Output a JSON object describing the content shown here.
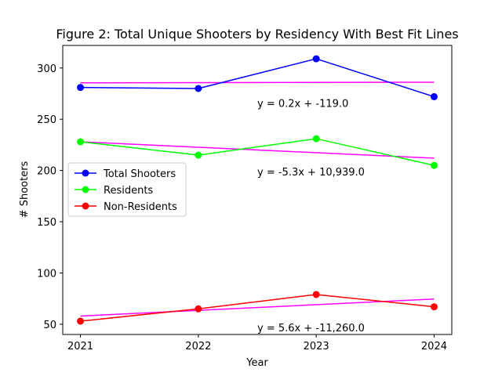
{
  "chart_data": {
    "type": "line",
    "title": "Figure 2: Total Unique Shooters by Residency With Best Fit Lines",
    "xlabel": "Year",
    "ylabel": "# Shooters",
    "x": [
      2021,
      2022,
      2023,
      2024
    ],
    "x_tick_labels": [
      "2021",
      "2022",
      "2023",
      "2024"
    ],
    "xlim": [
      2020.85,
      2024.15
    ],
    "ylim": [
      40,
      322
    ],
    "y_ticks": [
      50,
      100,
      150,
      200,
      250,
      300
    ],
    "grid": false,
    "legend_placement": "center-left",
    "series": [
      {
        "name": "Total Shooters",
        "color": "#0000ff",
        "values": [
          281,
          280,
          309,
          272
        ]
      },
      {
        "name": "Residents",
        "color": "#00ff00",
        "values": [
          228,
          215,
          231,
          205
        ]
      },
      {
        "name": "Non-Residents",
        "color": "#ff0000",
        "values": [
          53,
          65,
          79,
          67
        ]
      }
    ],
    "fit_lines": [
      {
        "color": "#ff00ff",
        "start": [
          2021,
          285.5
        ],
        "end": [
          2024,
          286.1
        ],
        "label": "y = 0.2x + -119.0",
        "label_anchor": [
          2022.5,
          262
        ]
      },
      {
        "color": "#ff00ff",
        "start": [
          2021,
          228
        ],
        "end": [
          2024,
          212
        ],
        "label": "y = -5.3x + 10,939.0",
        "label_anchor": [
          2022.5,
          195
        ]
      },
      {
        "color": "#ff00ff",
        "start": [
          2021,
          58
        ],
        "end": [
          2024,
          74.6
        ],
        "label": "y = 5.6x + -11,260.0",
        "label_anchor": [
          2022.5,
          43
        ]
      }
    ]
  }
}
